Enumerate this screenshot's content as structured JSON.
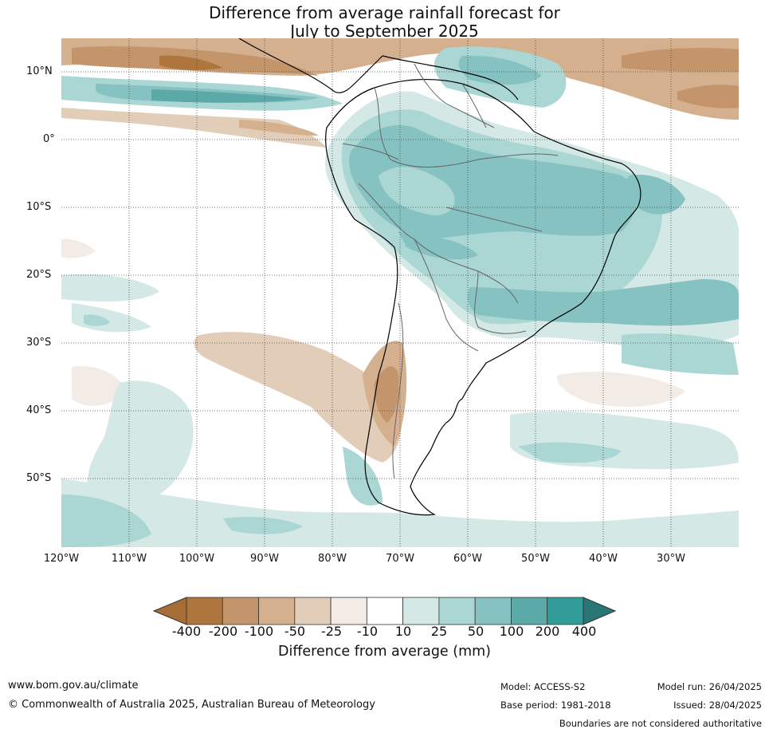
{
  "title_line1": "Difference from average rainfall forecast for",
  "title_line2": "July to September 2025",
  "lat_labels": [
    "10°N",
    "0°",
    "10°S",
    "20°S",
    "30°S",
    "40°S",
    "50°S"
  ],
  "lon_labels": [
    "120°W",
    "110°W",
    "100°W",
    "90°W",
    "80°W",
    "70°W",
    "60°W",
    "50°W",
    "40°W",
    "30°W"
  ],
  "colorbar": {
    "labels": [
      "-400",
      "-200",
      "-100",
      "-50",
      "-25",
      "-10",
      "10",
      "25",
      "50",
      "100",
      "200",
      "400"
    ],
    "colors": [
      "#a76d37",
      "#ae763c",
      "#c4956a",
      "#d4b08f",
      "#e2cdb9",
      "#f3ebe5",
      "#ffffff",
      "#d4e8e6",
      "#aad6d4",
      "#86c2c1",
      "#5ba9a8",
      "#319c98",
      "#2a7675"
    ],
    "title": "Difference from average (mm)"
  },
  "footer": {
    "url": "www.bom.gov.au/climate",
    "copyright": "© Commonwealth of Australia 2025, Australian Bureau of Meteorology",
    "model": "Model: ACCESS-S2",
    "base_period": "Base period: 1981-2018",
    "model_run": "Model run: 26/04/2025",
    "issued": "Issued: 28/04/2025",
    "disclaimer": "Boundaries are not considered authoritative"
  }
}
